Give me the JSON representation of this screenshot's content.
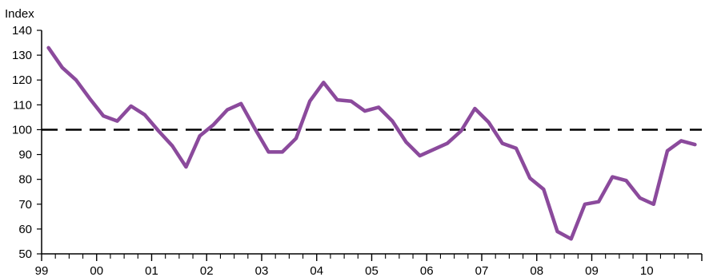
{
  "chart_data": {
    "type": "line",
    "title": "",
    "xlabel": "",
    "ylabel": "Index",
    "ylim": [
      50,
      140
    ],
    "yticks": [
      50,
      60,
      70,
      80,
      90,
      100,
      110,
      120,
      130,
      140
    ],
    "xticklabels": [
      "99",
      "00",
      "01",
      "02",
      "03",
      "04",
      "05",
      "06",
      "07",
      "08",
      "09",
      "10"
    ],
    "xrange": [
      1999.0,
      2011.0
    ],
    "reference_line": {
      "value": 100,
      "style": "dashed",
      "color": "#000000"
    },
    "grid": false,
    "legend": "none",
    "series": [
      {
        "color": "#8B4A9C",
        "x": [
          1999.125,
          1999.375,
          1999.625,
          1999.875,
          2000.125,
          2000.375,
          2000.625,
          2000.875,
          2001.125,
          2001.375,
          2001.625,
          2001.875,
          2002.125,
          2002.375,
          2002.625,
          2002.875,
          2003.125,
          2003.375,
          2003.625,
          2003.875,
          2004.125,
          2004.375,
          2004.625,
          2004.875,
          2005.125,
          2005.375,
          2005.625,
          2005.875,
          2006.125,
          2006.375,
          2006.625,
          2006.875,
          2007.125,
          2007.375,
          2007.625,
          2007.875,
          2008.125,
          2008.375,
          2008.625,
          2008.875,
          2009.125,
          2009.375,
          2009.625,
          2009.875,
          2010.125,
          2010.375,
          2010.625,
          2010.875
        ],
        "y": [
          133,
          125,
          120,
          112.5,
          105.5,
          103.5,
          109.5,
          106,
          99.5,
          93.5,
          85,
          97.5,
          102,
          108,
          110.5,
          100.5,
          91,
          91,
          96.5,
          111.5,
          119,
          112,
          111.5,
          107.5,
          109,
          103.5,
          95,
          89.5,
          92,
          94.5,
          99.5,
          108.5,
          103,
          94.5,
          92.5,
          80.5,
          76,
          59,
          56,
          70,
          71,
          81,
          79.5,
          72.5,
          70,
          91.5,
          95.5,
          94
        ]
      }
    ]
  }
}
